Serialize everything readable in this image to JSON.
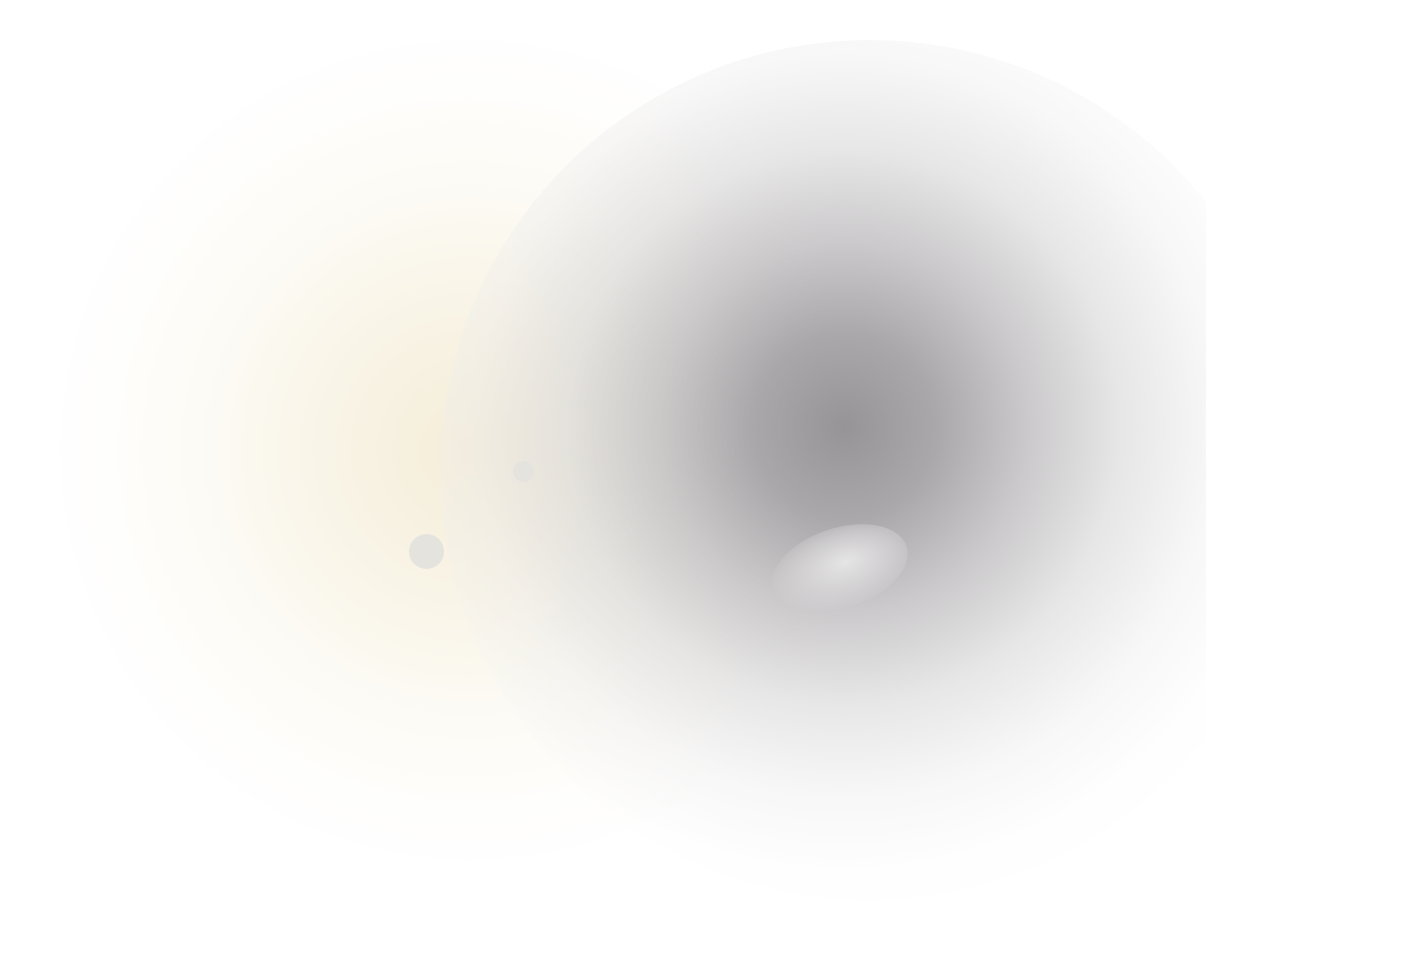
{
  "scene": {
    "background_color": "#ffffff",
    "warm_glow_color": "#f4ecd6",
    "dark_blur_color": "#969496",
    "dot_color": "#e4e3de"
  }
}
